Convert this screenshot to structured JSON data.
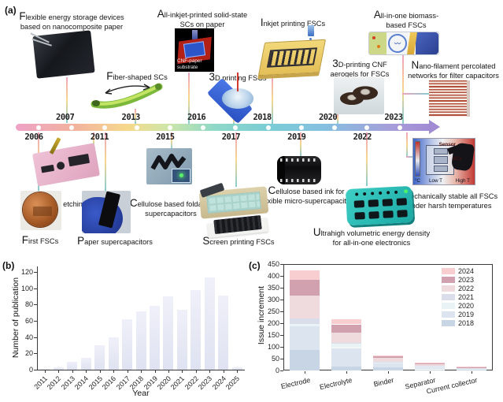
{
  "panels": {
    "a": "(a)",
    "b": "(b)",
    "c": "(c)"
  },
  "timeline": {
    "years_above": [
      "2007",
      "2013",
      "2016",
      "2018",
      "2020",
      "2023"
    ],
    "years_below": [
      "2006",
      "2011",
      "2015",
      "2017",
      "2019",
      "2022"
    ],
    "events_top": [
      "Flexible energy storage devices based on nanocomposite paper",
      "Fiber-shaped SCs",
      "All-inkjet-printed solid-state SCs on paper",
      "3D printing FSCs",
      "Inkjet printing FSCs",
      "3D-printing CNF aerogels for FSCs",
      "All-in-one biomass-based FSCs",
      "Nano-filament percolated networks for  filter capacitors"
    ],
    "events_bottom": [
      "First FSCs",
      "Laser etching FSCs",
      "Paper supercapacitors",
      "Cellulose based foldable supercapacitors",
      "Screen printing FSCs",
      "Cellulose based ink for flexible micro-supercapacitor",
      "Ultrahigh volumetric energy density for all-in-one electronics",
      "Mechanically stable all FSCs under harsh temperatures"
    ],
    "cnf_image_caption": "CNF-paper substrate",
    "mech_image": {
      "sensor": "Sensor",
      "scs": "SCs",
      "unit": "°C",
      "low": "Low T",
      "high": "High T"
    }
  },
  "chart_data": [
    {
      "type": "bar",
      "title": "",
      "xlabel": "Year",
      "ylabel": "Number of publication",
      "categories": [
        "2011",
        "2012",
        "2013",
        "2014",
        "2015",
        "2016",
        "2017",
        "2018",
        "2019",
        "2020",
        "2021",
        "2022",
        "2023",
        "2024",
        "2025"
      ],
      "values": [
        1,
        3,
        10,
        15,
        30,
        40,
        62,
        72,
        78,
        90,
        74,
        98,
        113,
        91,
        3
      ],
      "ylim": [
        0,
        130
      ],
      "yticks": [
        0,
        20,
        40,
        60,
        80,
        100,
        120
      ],
      "bar_color": "#e2e5f3",
      "grid": false
    },
    {
      "type": "stacked-bar",
      "title": "",
      "xlabel": "",
      "ylabel": "Issue increment",
      "categories": [
        "Electrode",
        "Electrolyte",
        "Binder",
        "Separator",
        "Current collector"
      ],
      "series": [
        {
          "name": "2018",
          "color": "#c7d5e4",
          "values": [
            88,
            18,
            14,
            5,
            3
          ]
        },
        {
          "name": "2019",
          "color": "#dce5ef",
          "values": [
            100,
            77,
            16,
            8,
            4
          ]
        },
        {
          "name": "2020",
          "color": "#e9f3f5",
          "values": [
            8,
            17,
            4,
            3,
            1
          ]
        },
        {
          "name": "2021",
          "color": "#d9deea",
          "values": [
            24,
            6,
            4,
            3,
            1
          ]
        },
        {
          "name": "2022",
          "color": "#efdade",
          "values": [
            98,
            42,
            14,
            7,
            4
          ]
        },
        {
          "name": "2023",
          "color": "#d2a1b0",
          "values": [
            65,
            35,
            7,
            5,
            2
          ]
        },
        {
          "name": "2024",
          "color": "#f8ced1",
          "values": [
            42,
            21,
            5,
            3,
            2
          ]
        }
      ],
      "totals": {
        "Electrode": 425,
        "Electrolyte": 216,
        "Binder": 64,
        "Separator": 34,
        "Current collector": 17
      },
      "ylim": [
        0,
        450
      ],
      "yticks": [
        0,
        50,
        100,
        150,
        200,
        250,
        300,
        350,
        400,
        450
      ],
      "legend_order": [
        "2024",
        "2023",
        "2022",
        "2021",
        "2020",
        "2019",
        "2018"
      ],
      "legend_position": "upper right",
      "grid": false
    }
  ]
}
